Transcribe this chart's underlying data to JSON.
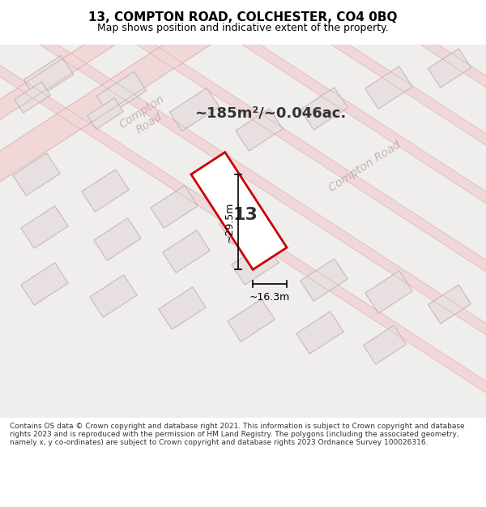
{
  "title": "13, COMPTON ROAD, COLCHESTER, CO4 0BQ",
  "subtitle": "Map shows position and indicative extent of the property.",
  "area_text": "~185m²/~0.046ac.",
  "dim_width": "~16.3m",
  "dim_height": "~29.5m",
  "property_number": "13",
  "footer": "Contains OS data © Crown copyright and database right 2021. This information is subject to Crown copyright and database rights 2023 and is reproduced with the permission of HM Land Registry. The polygons (including the associated geometry, namely x, y co-ordinates) are subject to Crown copyright and database rights 2023 Ordnance Survey 100026316.",
  "bg_color": "#f5f0f0",
  "map_bg": "#f0eded",
  "road_color": "#f5c8c8",
  "building_color": "#e8e0e0",
  "building_edge": "#d0b8b8",
  "highlight_color": "#cc0000",
  "highlight_fill": "#ffffff",
  "road_label_color": "#b0a0a0",
  "dim_color": "#000000",
  "text_color": "#333333",
  "title_color": "#000000"
}
